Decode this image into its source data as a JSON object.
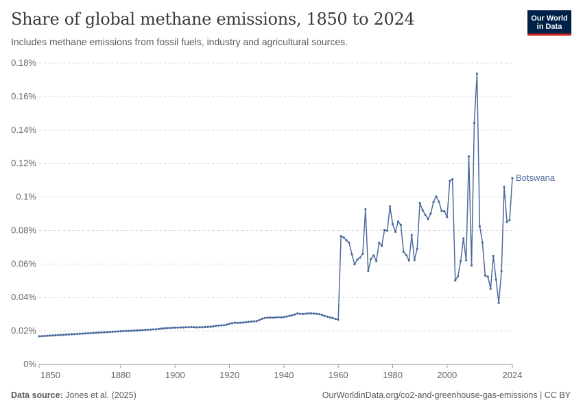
{
  "header": {
    "title": "Share of global methane emissions, 1850 to 2024",
    "subtitle": "Includes methane emissions from fossil fuels, industry and agricultural sources."
  },
  "logo": {
    "line1": "Our World",
    "line2": "in Data"
  },
  "footer": {
    "source_label": "Data source:",
    "source_text": " Jones et al. (2025)",
    "url_text": "OurWorldinData.org/co2-and-greenhouse-gas-emissions | CC BY"
  },
  "colors": {
    "series": "#4c6a9c",
    "grid": "#dddddd",
    "logo_bg": "#002147",
    "logo_accent": "#ce261e"
  },
  "chart_data": {
    "type": "line",
    "title": "Share of global methane emissions, 1850 to 2024",
    "subtitle": "Includes methane emissions from fossil fuels, industry and agricultural sources.",
    "xlim": [
      1850,
      2024
    ],
    "ylim": [
      0,
      0.18
    ],
    "y_ticks": [
      0,
      0.02,
      0.04,
      0.06,
      0.08,
      0.1,
      0.12,
      0.14,
      0.16,
      0.18
    ],
    "y_tick_labels": [
      "0%",
      "0.02%",
      "0.04%",
      "0.06%",
      "0.08%",
      "0.1%",
      "0.12%",
      "0.14%",
      "0.16%",
      "0.18%"
    ],
    "x_ticks": [
      1850,
      1880,
      1900,
      1920,
      1940,
      1960,
      1980,
      2000,
      2024
    ],
    "x_tick_labels": [
      "1850",
      "1880",
      "1900",
      "1920",
      "1940",
      "1960",
      "1980",
      "2000",
      "2024"
    ],
    "grid": "horizontal dashed",
    "series": [
      {
        "name": "Botswana",
        "x": [
          1850,
          1851,
          1852,
          1853,
          1854,
          1855,
          1856,
          1857,
          1858,
          1859,
          1860,
          1861,
          1862,
          1863,
          1864,
          1865,
          1866,
          1867,
          1868,
          1869,
          1870,
          1871,
          1872,
          1873,
          1874,
          1875,
          1876,
          1877,
          1878,
          1879,
          1880,
          1881,
          1882,
          1883,
          1884,
          1885,
          1886,
          1887,
          1888,
          1889,
          1890,
          1891,
          1892,
          1893,
          1894,
          1895,
          1896,
          1897,
          1898,
          1899,
          1900,
          1901,
          1902,
          1903,
          1904,
          1905,
          1906,
          1907,
          1908,
          1909,
          1910,
          1911,
          1912,
          1913,
          1914,
          1915,
          1916,
          1917,
          1918,
          1919,
          1920,
          1921,
          1922,
          1923,
          1924,
          1925,
          1926,
          1927,
          1928,
          1929,
          1930,
          1931,
          1932,
          1933,
          1934,
          1935,
          1936,
          1937,
          1938,
          1939,
          1940,
          1941,
          1942,
          1943,
          1944,
          1945,
          1946,
          1947,
          1948,
          1949,
          1950,
          1951,
          1952,
          1953,
          1954,
          1955,
          1956,
          1957,
          1958,
          1959,
          1960,
          1961,
          1962,
          1963,
          1964,
          1965,
          1966,
          1967,
          1968,
          1969,
          1970,
          1971,
          1972,
          1973,
          1974,
          1975,
          1976,
          1977,
          1978,
          1979,
          1980,
          1981,
          1982,
          1983,
          1984,
          1985,
          1986,
          1987,
          1988,
          1989,
          1990,
          1991,
          1992,
          1993,
          1994,
          1995,
          1996,
          1997,
          1998,
          1999,
          2000,
          2001,
          2002,
          2003,
          2004,
          2005,
          2006,
          2007,
          2008,
          2009,
          2010,
          2011,
          2012,
          2013,
          2014,
          2015,
          2016,
          2017,
          2018,
          2019,
          2020,
          2021,
          2022,
          2023,
          2024
        ],
        "y": [
          0.0168,
          0.0169,
          0.017,
          0.0171,
          0.0172,
          0.0173,
          0.0174,
          0.0175,
          0.0176,
          0.0177,
          0.0178,
          0.0179,
          0.018,
          0.0181,
          0.0182,
          0.0183,
          0.0184,
          0.0185,
          0.0186,
          0.0187,
          0.0188,
          0.0189,
          0.019,
          0.0191,
          0.0192,
          0.0193,
          0.0194,
          0.0195,
          0.0196,
          0.0197,
          0.0198,
          0.0199,
          0.02,
          0.02,
          0.0201,
          0.0202,
          0.0203,
          0.0204,
          0.0205,
          0.0206,
          0.0207,
          0.0208,
          0.0209,
          0.021,
          0.0212,
          0.0214,
          0.0216,
          0.0217,
          0.0218,
          0.0219,
          0.022,
          0.022,
          0.0221,
          0.0221,
          0.0222,
          0.0222,
          0.0223,
          0.0222,
          0.0221,
          0.0222,
          0.0222,
          0.0223,
          0.0224,
          0.0225,
          0.0227,
          0.023,
          0.0232,
          0.0233,
          0.0234,
          0.0238,
          0.0243,
          0.0246,
          0.0249,
          0.0248,
          0.0249,
          0.025,
          0.0252,
          0.0254,
          0.0256,
          0.0257,
          0.0259,
          0.0265,
          0.0273,
          0.0277,
          0.0279,
          0.028,
          0.0279,
          0.0281,
          0.0282,
          0.0281,
          0.0283,
          0.0286,
          0.029,
          0.0293,
          0.0298,
          0.0305,
          0.0302,
          0.0301,
          0.0303,
          0.0305,
          0.0305,
          0.0304,
          0.0302,
          0.03,
          0.0296,
          0.0289,
          0.0285,
          0.0281,
          0.0277,
          0.0271,
          0.0267,
          0.0766,
          0.0758,
          0.0741,
          0.0727,
          0.0657,
          0.0598,
          0.0626,
          0.0638,
          0.066,
          0.0926,
          0.0559,
          0.0629,
          0.0651,
          0.0617,
          0.0727,
          0.0708,
          0.0803,
          0.0798,
          0.0944,
          0.0838,
          0.0792,
          0.0853,
          0.0833,
          0.0672,
          0.0652,
          0.0621,
          0.0773,
          0.0623,
          0.069,
          0.0964,
          0.0921,
          0.0894,
          0.0869,
          0.0902,
          0.0969,
          0.1003,
          0.0972,
          0.0917,
          0.0915,
          0.088,
          0.1096,
          0.1106,
          0.0502,
          0.0526,
          0.0616,
          0.0753,
          0.0622,
          0.1242,
          0.0591,
          0.1442,
          0.1737,
          0.0825,
          0.0729,
          0.0531,
          0.0524,
          0.0452,
          0.0648,
          0.0507,
          0.0367,
          0.0558,
          0.106,
          0.0851,
          0.0862,
          0.1113
        ]
      }
    ]
  }
}
